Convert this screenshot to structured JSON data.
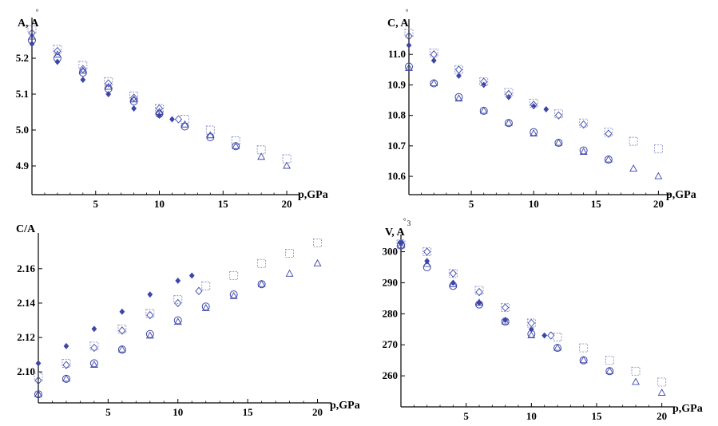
{
  "colors": {
    "marker": "#3c46a8",
    "marker_light": "#8a90c8",
    "axis": "#000000"
  },
  "chart_data": [
    {
      "type": "scatter",
      "ylabel": "A, A",
      "ylabel_ring": "°",
      "xlabel": "p,GPa",
      "xlim": [
        0,
        21
      ],
      "ylim": [
        4.82,
        5.3
      ],
      "xticks": [
        5,
        10,
        15,
        20
      ],
      "yticks": [
        4.9,
        5.0,
        5.1,
        5.2
      ],
      "xtick_labels": [
        "5",
        "10",
        "15",
        "20"
      ],
      "ytick_labels": [
        "4.9",
        "5.0",
        "5.1",
        "5.2"
      ],
      "series": [
        {
          "marker": "filled-diamond",
          "x": [
            0,
            2,
            4,
            6,
            8,
            10,
            11
          ],
          "y": [
            5.24,
            5.19,
            5.14,
            5.1,
            5.06,
            5.04,
            5.03
          ]
        },
        {
          "marker": "open-diamond",
          "x": [
            0,
            2,
            4,
            6,
            8,
            10,
            11.5
          ],
          "y": [
            5.27,
            5.22,
            5.17,
            5.13,
            5.09,
            5.06,
            5.03
          ]
        },
        {
          "marker": "open-square",
          "x": [
            0,
            2,
            4,
            6,
            8,
            10,
            12,
            14,
            16,
            18,
            20
          ],
          "y": [
            5.28,
            5.225,
            5.18,
            5.135,
            5.095,
            5.06,
            5.03,
            5.0,
            4.97,
            4.945,
            4.92
          ]
        },
        {
          "marker": "open-circle",
          "x": [
            0,
            2,
            4,
            6,
            8,
            10,
            12,
            14,
            16
          ],
          "y": [
            5.25,
            5.2,
            5.16,
            5.115,
            5.08,
            5.045,
            5.01,
            4.98,
            4.955
          ]
        },
        {
          "marker": "open-triangle",
          "x": [
            0,
            2,
            4,
            6,
            8,
            10,
            12,
            14,
            16,
            18,
            20
          ],
          "y": [
            5.26,
            5.21,
            5.165,
            5.12,
            5.085,
            5.05,
            5.015,
            4.985,
            4.955,
            4.925,
            4.9
          ]
        }
      ]
    },
    {
      "type": "scatter",
      "ylabel": "C, A",
      "ylabel_ring": "°",
      "xlabel": "p,GPa",
      "xlim": [
        0,
        21
      ],
      "ylim": [
        10.54,
        11.1
      ],
      "xticks": [
        5,
        10,
        15,
        20
      ],
      "yticks": [
        10.6,
        10.7,
        10.8,
        10.9,
        11.0
      ],
      "xtick_labels": [
        "5",
        "10",
        "15",
        "20"
      ],
      "ytick_labels": [
        "10.6",
        "10.7",
        "10.8",
        "10.9",
        "11.0"
      ],
      "series": [
        {
          "marker": "filled-diamond",
          "x": [
            0,
            2,
            4,
            6,
            8,
            10,
            11
          ],
          "y": [
            11.03,
            10.98,
            10.93,
            10.9,
            10.86,
            10.83,
            10.82
          ]
        },
        {
          "marker": "open-diamond",
          "x": [
            0,
            2,
            4,
            6,
            8,
            10,
            12,
            14,
            16
          ],
          "y": [
            11.06,
            11.0,
            10.95,
            10.91,
            10.87,
            10.835,
            10.8,
            10.77,
            10.74
          ]
        },
        {
          "marker": "open-square",
          "x": [
            0,
            2,
            4,
            6,
            8,
            10,
            12,
            14,
            16,
            18,
            20
          ],
          "y": [
            11.07,
            11.005,
            10.95,
            10.91,
            10.875,
            10.84,
            10.805,
            10.775,
            10.745,
            10.715,
            10.69
          ]
        },
        {
          "marker": "open-circle",
          "x": [
            0,
            2,
            4,
            6,
            8,
            10,
            12,
            14,
            16
          ],
          "y": [
            10.96,
            10.905,
            10.86,
            10.815,
            10.775,
            10.745,
            10.71,
            10.685,
            10.655
          ]
        },
        {
          "marker": "open-triangle",
          "x": [
            0,
            2,
            4,
            6,
            8,
            10,
            12,
            14,
            16,
            18,
            20
          ],
          "y": [
            10.955,
            10.905,
            10.855,
            10.815,
            10.775,
            10.74,
            10.71,
            10.68,
            10.655,
            10.625,
            10.6
          ]
        }
      ]
    },
    {
      "type": "scatter",
      "ylabel": "C/A",
      "ylabel_ring": "",
      "xlabel": "p,GPa",
      "xlim": [
        0,
        21
      ],
      "ylim": [
        2.082,
        2.178
      ],
      "xticks": [
        5,
        10,
        15,
        20
      ],
      "yticks": [
        2.1,
        2.12,
        2.14,
        2.16
      ],
      "xtick_labels": [
        "5",
        "10",
        "15",
        "20"
      ],
      "ytick_labels": [
        "2.10",
        "2.12",
        "2.14",
        "2.16"
      ],
      "series": [
        {
          "marker": "filled-diamond",
          "x": [
            0,
            2,
            4,
            6,
            8,
            10,
            11
          ],
          "y": [
            2.105,
            2.115,
            2.125,
            2.135,
            2.145,
            2.153,
            2.156
          ]
        },
        {
          "marker": "open-diamond",
          "x": [
            0,
            2,
            4,
            6,
            8,
            10,
            11.5
          ],
          "y": [
            2.095,
            2.104,
            2.114,
            2.124,
            2.133,
            2.14,
            2.147
          ]
        },
        {
          "marker": "open-square",
          "x": [
            0,
            2,
            4,
            6,
            8,
            10,
            12,
            14,
            16,
            18,
            20
          ],
          "y": [
            2.097,
            2.105,
            2.115,
            2.125,
            2.134,
            2.142,
            2.15,
            2.156,
            2.163,
            2.169,
            2.175
          ]
        },
        {
          "marker": "open-circle",
          "x": [
            0,
            2,
            4,
            6,
            8,
            10,
            12,
            14,
            16
          ],
          "y": [
            2.087,
            2.096,
            2.105,
            2.113,
            2.122,
            2.13,
            2.138,
            2.145,
            2.151
          ]
        },
        {
          "marker": "open-triangle",
          "x": [
            0,
            2,
            4,
            6,
            8,
            10,
            12,
            14,
            16,
            18,
            20
          ],
          "y": [
            2.087,
            2.096,
            2.104,
            2.113,
            2.121,
            2.129,
            2.137,
            2.144,
            2.151,
            2.157,
            2.163
          ]
        }
      ]
    },
    {
      "type": "scatter",
      "ylabel": "V, A",
      "ylabel_ring": "°",
      "ylabel_power": "3",
      "xlabel": "p,GPa",
      "xlim": [
        0,
        21
      ],
      "ylim": [
        250,
        304
      ],
      "xticks": [
        5,
        10,
        15,
        20
      ],
      "yticks": [
        260,
        270,
        280,
        290,
        300
      ],
      "xtick_labels": [
        "5",
        "10",
        "15",
        "20"
      ],
      "ytick_labels": [
        "260",
        "270",
        "280",
        "290",
        "300"
      ],
      "series": [
        {
          "marker": "filled-diamond",
          "x": [
            0,
            2,
            4,
            6,
            8,
            10,
            11
          ],
          "y": [
            303,
            297,
            290,
            283.5,
            278,
            275,
            273
          ]
        },
        {
          "marker": "open-diamond",
          "x": [
            0,
            2,
            4,
            6,
            8,
            10,
            11.5
          ],
          "y": [
            303,
            300,
            293,
            287,
            282,
            277,
            273
          ]
        },
        {
          "marker": "open-square",
          "x": [
            0,
            2,
            4,
            6,
            8,
            10,
            12,
            14,
            16,
            18,
            20
          ],
          "y": [
            302.5,
            300,
            293,
            287.5,
            282,
            277,
            272.5,
            269,
            265,
            261.5,
            258
          ]
        },
        {
          "marker": "open-circle",
          "x": [
            0,
            2,
            4,
            6,
            8,
            10,
            12,
            14,
            16
          ],
          "y": [
            302,
            295,
            289,
            283,
            277.5,
            273.5,
            269,
            265,
            261.5
          ]
        },
        {
          "marker": "open-triangle",
          "x": [
            0,
            2,
            4,
            6,
            8,
            10,
            12,
            14,
            16,
            18,
            20
          ],
          "y": [
            302,
            296,
            289.5,
            283.5,
            277.5,
            273,
            269,
            265,
            261.5,
            258,
            254.5
          ]
        }
      ]
    }
  ]
}
